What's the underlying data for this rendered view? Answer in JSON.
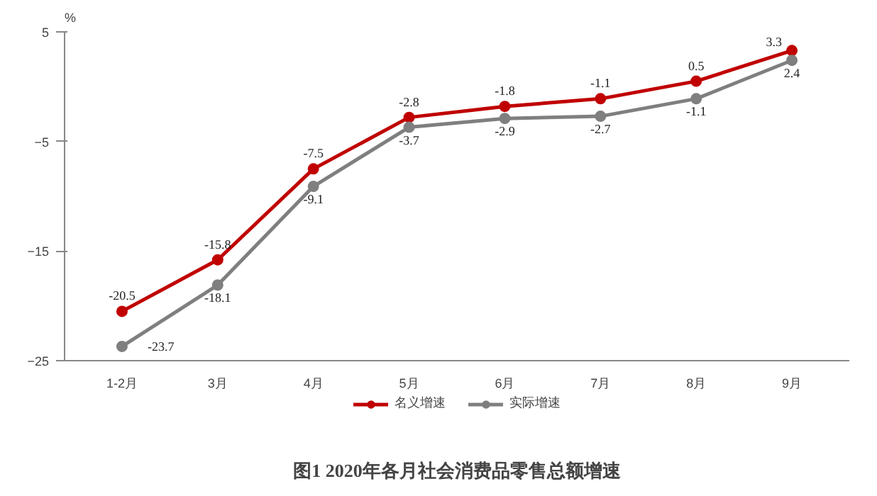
{
  "chart_data": {
    "type": "line",
    "title": "图1 2020年各月社会消费品零售总额增速",
    "ylabel": "%",
    "categories": [
      "1-2月",
      "3月",
      "4月",
      "5月",
      "6月",
      "7月",
      "8月",
      "9月"
    ],
    "series": [
      {
        "name": "名义增速",
        "color": "#c00000",
        "values": [
          -20.5,
          -15.8,
          -7.5,
          -2.8,
          -1.8,
          -1.1,
          0.5,
          3.3
        ]
      },
      {
        "name": "实际增速",
        "color": "#7f7f7f",
        "values": [
          -23.7,
          -18.1,
          -9.1,
          -3.7,
          -2.9,
          -2.7,
          -1.1,
          2.4
        ]
      }
    ],
    "ylim": [
      -25,
      5
    ],
    "yticks": [
      -25,
      -15,
      -5,
      5
    ],
    "grid": false,
    "legend": "bottom",
    "marker": "circle",
    "line_style": "solid",
    "data_labels": true
  }
}
